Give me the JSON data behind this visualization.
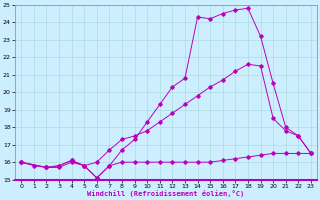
{
  "bg_color": "#cceeff",
  "line_color": "#bb00bb",
  "grid_color": "#aadddd",
  "xlabel": "Windchill (Refroidissement éolien,°C)",
  "xlim": [
    -0.5,
    23.5
  ],
  "ylim": [
    15,
    25
  ],
  "yticks": [
    15,
    16,
    17,
    18,
    19,
    20,
    21,
    22,
    23,
    24,
    25
  ],
  "xticks": [
    0,
    1,
    2,
    3,
    4,
    5,
    6,
    7,
    8,
    9,
    10,
    11,
    12,
    13,
    14,
    15,
    16,
    17,
    18,
    19,
    20,
    21,
    22,
    23
  ],
  "line1_x": [
    0,
    1,
    2,
    3,
    4,
    5,
    6,
    7,
    8,
    9,
    10,
    11,
    12,
    13,
    14,
    15,
    16,
    17,
    18,
    19,
    20,
    21,
    22,
    23
  ],
  "line1_y": [
    16.0,
    15.8,
    15.7,
    15.7,
    16.0,
    15.8,
    15.1,
    15.8,
    16.0,
    16.0,
    16.0,
    16.0,
    16.0,
    16.0,
    16.0,
    16.0,
    16.1,
    16.2,
    16.3,
    16.4,
    16.5,
    16.5,
    16.5,
    16.5
  ],
  "line2_x": [
    0,
    2,
    3,
    4,
    5,
    6,
    7,
    8,
    9,
    10,
    11,
    12,
    13,
    14,
    15,
    16,
    17,
    18,
    19,
    20,
    21,
    22,
    23
  ],
  "line2_y": [
    16.0,
    15.7,
    15.8,
    16.1,
    15.8,
    16.0,
    16.7,
    17.3,
    17.5,
    17.8,
    18.3,
    18.8,
    19.3,
    19.8,
    20.3,
    20.7,
    21.2,
    21.6,
    21.5,
    18.5,
    17.8,
    17.5,
    16.5
  ],
  "line3_x": [
    0,
    2,
    3,
    4,
    5,
    6,
    7,
    8,
    9,
    10,
    11,
    12,
    13,
    14,
    15,
    16,
    17,
    18,
    19,
    20,
    21,
    22,
    23
  ],
  "line3_y": [
    16.0,
    15.7,
    15.8,
    16.1,
    15.8,
    15.1,
    15.8,
    16.7,
    17.3,
    18.3,
    19.3,
    20.3,
    20.8,
    24.3,
    24.2,
    24.5,
    24.7,
    24.8,
    23.2,
    20.5,
    18.0,
    17.5,
    16.5
  ]
}
